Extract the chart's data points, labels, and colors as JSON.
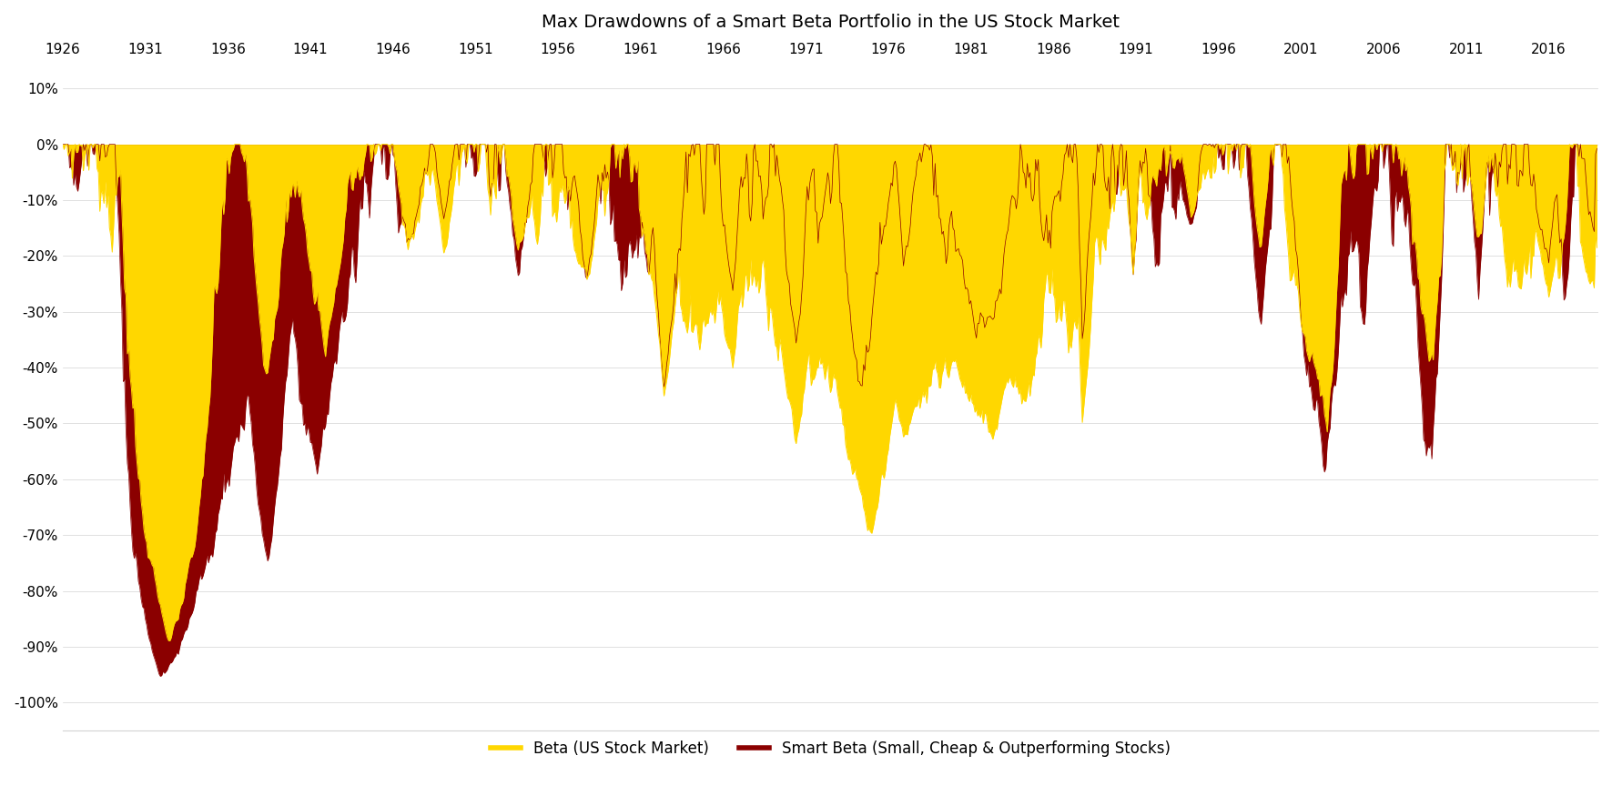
{
  "title": "Max Drawdowns of a Smart Beta Portfolio in the US Stock Market",
  "title_fontsize": 14,
  "ylabel_ticks": [
    "10%",
    "0%",
    "-10%",
    "-20%",
    "-30%",
    "-40%",
    "-50%",
    "-60%",
    "-70%",
    "-80%",
    "-90%",
    "-100%"
  ],
  "ytick_values": [
    0.1,
    0.0,
    -0.1,
    -0.2,
    -0.3,
    -0.4,
    -0.5,
    -0.6,
    -0.7,
    -0.8,
    -0.9,
    -1.0
  ],
  "ylim": [
    -1.05,
    0.15
  ],
  "xlim_start": 1926,
  "xlim_end": 2019,
  "xtick_years": [
    1926,
    1931,
    1936,
    1941,
    1946,
    1951,
    1956,
    1961,
    1966,
    1971,
    1976,
    1981,
    1986,
    1991,
    1996,
    2001,
    2006,
    2011,
    2016
  ],
  "beta_color": "#FFD700",
  "smart_beta_color": "#8B0000",
  "beta_label": "Beta (US Stock Market)",
  "smart_beta_label": "Smart Beta (Small, Cheap & Outperforming Stocks)",
  "background_color": "#FFFFFF"
}
